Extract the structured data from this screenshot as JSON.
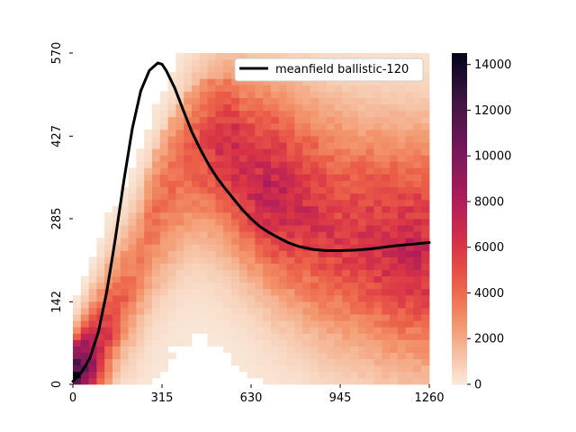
{
  "chart_data": {
    "type": "heatmap",
    "x_ticks": [
      "0",
      "315",
      "630",
      "945",
      "1260"
    ],
    "y_ticks": [
      "0",
      "142",
      "285",
      "427",
      "570"
    ],
    "xlim": [
      0,
      1260
    ],
    "ylim": [
      0,
      570
    ],
    "colorbar": {
      "ticks": [
        "0",
        "2000",
        "4000",
        "6000",
        "8000",
        "10000",
        "12000",
        "14000"
      ],
      "range": [
        0,
        14500
      ]
    },
    "legend": {
      "label": "meanfield ballistic-120",
      "placement": "upper-right"
    },
    "line_series": {
      "name": "meanfield ballistic-120",
      "color": "#000000",
      "x": [
        0,
        30,
        60,
        90,
        120,
        150,
        180,
        210,
        240,
        270,
        300,
        315,
        330,
        360,
        390,
        420,
        450,
        480,
        510,
        540,
        570,
        600,
        630,
        660,
        690,
        720,
        760,
        800,
        850,
        900,
        945,
        1000,
        1050,
        1100,
        1150,
        1200,
        1260
      ],
      "y": [
        5,
        20,
        45,
        90,
        160,
        250,
        350,
        440,
        505,
        540,
        553,
        551,
        540,
        510,
        472,
        435,
        405,
        378,
        355,
        336,
        318,
        300,
        285,
        272,
        262,
        254,
        244,
        237,
        232,
        230,
        230,
        231,
        233,
        236,
        239,
        241,
        244
      ]
    },
    "heat_bands": {
      "x": [
        0,
        50,
        100,
        150,
        200,
        250,
        300,
        350,
        400,
        450,
        500,
        550,
        600,
        650,
        700,
        750,
        800,
        850,
        900,
        950,
        1000,
        1050,
        1100,
        1150,
        1200,
        1250
      ],
      "center": [
        15,
        40,
        75,
        125,
        175,
        230,
        285,
        330,
        370,
        395,
        400,
        395,
        380,
        365,
        350,
        335,
        320,
        305,
        290,
        280,
        270,
        262,
        255,
        250,
        248,
        245
      ],
      "peak": [
        14000,
        9500,
        6000,
        4500,
        3500,
        3000,
        3000,
        3200,
        3500,
        4200,
        5000,
        5800,
        6200,
        6500,
        6800,
        6500,
        6000,
        5800,
        5500,
        5400,
        5500,
        5800,
        6000,
        6200,
        6300,
        6300
      ]
    }
  }
}
